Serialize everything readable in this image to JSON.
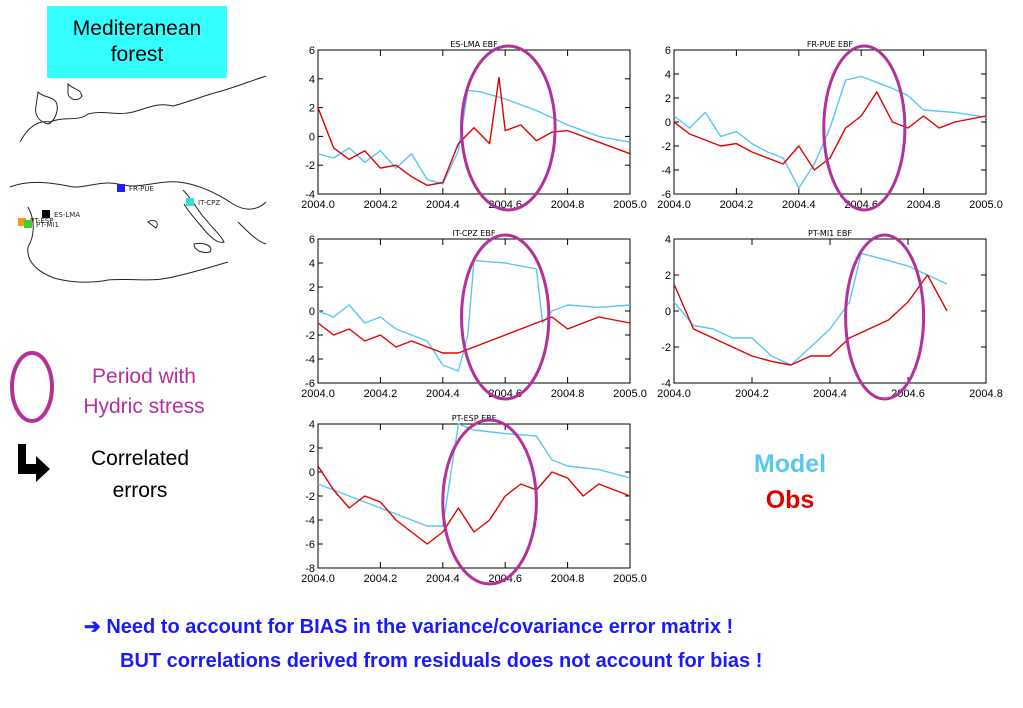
{
  "header": {
    "region_label": "Mediteranean\nforest"
  },
  "map": {
    "sites": [
      {
        "label": "FR-PUE",
        "color": "#1c1cff"
      },
      {
        "label": "IT-CPZ",
        "color": "#33dddd"
      },
      {
        "label": "ES-LMA",
        "color": "#000000"
      },
      {
        "label": "PT-ESP",
        "color": "#f39c12"
      },
      {
        "label": "PT-MI1",
        "color": "#44cc33"
      }
    ]
  },
  "legend": {
    "period_label": "Period with\nHydric stress",
    "correlated_label": "Correlated\nerrors",
    "model_label": "Model",
    "obs_label": "Obs",
    "circle_color": "#b4309a",
    "model_color": "#55c8f2",
    "obs_color": "#e00000"
  },
  "notes": {
    "line1": "➔ Need to account for BIAS in the variance/covariance error matrix !",
    "line2": "BUT correlations derived from residuals does not account for bias !"
  },
  "chart_data": [
    {
      "type": "line",
      "title": "ES-LMA EBF",
      "xlim": [
        2004.0,
        2005.0
      ],
      "ylim": [
        -4,
        6
      ],
      "yticks": [
        -4,
        -2,
        0,
        2,
        4,
        6
      ],
      "xticks": [
        "2004.0",
        "2004.2",
        "2004.4",
        "2004.6",
        "2004.8",
        "2005.0"
      ],
      "stress_period": [
        2004.46,
        2004.76
      ],
      "series": [
        {
          "role": "model",
          "color": "#55c8f2",
          "x": [
            2004.0,
            2004.05,
            2004.1,
            2004.15,
            2004.2,
            2004.25,
            2004.3,
            2004.35,
            2004.4,
            2004.45,
            2004.48,
            2004.52,
            2004.6,
            2004.7,
            2004.8,
            2004.9,
            2005.0
          ],
          "y": [
            -1.2,
            -1.5,
            -0.8,
            -1.8,
            -1.0,
            -2.2,
            -1.2,
            -3.0,
            -3.3,
            -1.0,
            3.2,
            3.1,
            2.6,
            1.8,
            0.8,
            0.0,
            -0.4
          ]
        },
        {
          "role": "obs",
          "color": "#e00000",
          "x": [
            2004.0,
            2004.05,
            2004.1,
            2004.15,
            2004.2,
            2004.25,
            2004.3,
            2004.35,
            2004.4,
            2004.45,
            2004.5,
            2004.55,
            2004.58,
            2004.6,
            2004.65,
            2004.7,
            2004.75,
            2004.8,
            2004.9,
            2005.0
          ],
          "y": [
            2.0,
            -0.8,
            -1.6,
            -1.0,
            -2.2,
            -2.0,
            -2.8,
            -3.4,
            -3.2,
            -0.5,
            0.6,
            -0.5,
            4.1,
            0.4,
            0.8,
            -0.3,
            0.3,
            0.4,
            -0.4,
            -1.2
          ]
        }
      ]
    },
    {
      "type": "line",
      "title": "FR-PUE EBF",
      "xlim": [
        2004.0,
        2005.0
      ],
      "ylim": [
        -6,
        6
      ],
      "yticks": [
        -6,
        -4,
        -2,
        0,
        2,
        4,
        6
      ],
      "xticks": [
        "2004.0",
        "2004.2",
        "2004.4",
        "2004.6",
        "2004.8",
        "2005.0"
      ],
      "stress_period": [
        2004.48,
        2004.74
      ],
      "series": [
        {
          "role": "model",
          "color": "#55c8f2",
          "x": [
            2004.0,
            2004.05,
            2004.1,
            2004.15,
            2004.2,
            2004.25,
            2004.3,
            2004.35,
            2004.4,
            2004.45,
            2004.5,
            2004.55,
            2004.6,
            2004.7,
            2004.75,
            2004.8,
            2004.9,
            2005.0
          ],
          "y": [
            0.5,
            -0.5,
            0.8,
            -1.2,
            -0.8,
            -1.8,
            -2.5,
            -3.0,
            -5.5,
            -3.5,
            -0.5,
            3.5,
            3.8,
            2.8,
            2.2,
            1.0,
            0.8,
            0.4
          ]
        },
        {
          "role": "obs",
          "color": "#e00000",
          "x": [
            2004.0,
            2004.05,
            2004.1,
            2004.15,
            2004.2,
            2004.25,
            2004.3,
            2004.35,
            2004.4,
            2004.45,
            2004.5,
            2004.55,
            2004.6,
            2004.65,
            2004.7,
            2004.75,
            2004.8,
            2004.85,
            2004.9,
            2005.0
          ],
          "y": [
            0.0,
            -1.0,
            -1.5,
            -2.0,
            -1.8,
            -2.5,
            -3.0,
            -3.5,
            -2.0,
            -4.0,
            -3.0,
            -0.5,
            0.5,
            2.5,
            0.0,
            -0.5,
            0.5,
            -0.5,
            0.0,
            0.5
          ]
        }
      ]
    },
    {
      "type": "line",
      "title": "IT-CPZ EBF",
      "xlim": [
        2004.0,
        2005.0
      ],
      "ylim": [
        -6,
        6
      ],
      "yticks": [
        -6,
        -4,
        -2,
        0,
        2,
        4,
        6
      ],
      "xticks": [
        "2004.0",
        "2004.2",
        "2004.4",
        "2004.6",
        "2004.8",
        "2005.0"
      ],
      "stress_period": [
        2004.46,
        2004.74
      ],
      "series": [
        {
          "role": "model",
          "color": "#55c8f2",
          "x": [
            2004.0,
            2004.05,
            2004.1,
            2004.15,
            2004.2,
            2004.25,
            2004.3,
            2004.35,
            2004.4,
            2004.45,
            2004.48,
            2004.5,
            2004.6,
            2004.7,
            2004.72,
            2004.75,
            2004.8,
            2004.9,
            2005.0
          ],
          "y": [
            0.0,
            -0.5,
            0.5,
            -1.0,
            -0.5,
            -1.5,
            -2.0,
            -2.5,
            -4.5,
            -5.0,
            -2.0,
            4.2,
            4.0,
            3.5,
            -1.0,
            0.0,
            0.5,
            0.3,
            0.5
          ]
        },
        {
          "role": "obs",
          "color": "#e00000",
          "x": [
            2004.0,
            2004.05,
            2004.1,
            2004.15,
            2004.2,
            2004.25,
            2004.3,
            2004.35,
            2004.4,
            2004.45,
            2004.5,
            2004.55,
            2004.6,
            2004.65,
            2004.7,
            2004.75,
            2004.8,
            2004.85,
            2004.9,
            2005.0
          ],
          "y": [
            -1.0,
            -2.0,
            -1.5,
            -2.5,
            -2.0,
            -3.0,
            -2.5,
            -3.0,
            -3.5,
            -3.5,
            -3.0,
            -2.5,
            -2.0,
            -1.5,
            -1.0,
            -0.5,
            -1.5,
            -1.0,
            -0.5,
            -1.0
          ]
        }
      ]
    },
    {
      "type": "line",
      "title": "PT-MI1 EBF",
      "xlim": [
        2004.0,
        2004.8
      ],
      "ylim": [
        -4,
        4
      ],
      "yticks": [
        -4,
        -2,
        0,
        2,
        4
      ],
      "xticks": [
        "2004.0",
        "2004.2",
        "2004.4",
        "2004.6",
        "2004.8"
      ],
      "stress_period": [
        2004.44,
        2004.64
      ],
      "series": [
        {
          "role": "model",
          "color": "#55c8f2",
          "x": [
            2004.0,
            2004.05,
            2004.1,
            2004.15,
            2004.2,
            2004.25,
            2004.3,
            2004.35,
            2004.4,
            2004.45,
            2004.48,
            2004.55,
            2004.6,
            2004.65,
            2004.7
          ],
          "y": [
            0.5,
            -0.8,
            -1.0,
            -1.5,
            -1.5,
            -2.5,
            -3.0,
            -2.0,
            -1.0,
            0.5,
            3.2,
            2.8,
            2.5,
            2.0,
            1.5
          ]
        },
        {
          "role": "obs",
          "color": "#e00000",
          "x": [
            2004.0,
            2004.05,
            2004.1,
            2004.15,
            2004.2,
            2004.25,
            2004.3,
            2004.35,
            2004.4,
            2004.45,
            2004.5,
            2004.55,
            2004.6,
            2004.65,
            2004.7
          ],
          "y": [
            1.5,
            -1.0,
            -1.5,
            -2.0,
            -2.5,
            -2.8,
            -3.0,
            -2.5,
            -2.5,
            -1.5,
            -1.0,
            -0.5,
            0.5,
            2.0,
            0.0
          ]
        }
      ]
    },
    {
      "type": "line",
      "title": "PT-ESP EBF",
      "xlim": [
        2004.0,
        2005.0
      ],
      "ylim": [
        -8,
        4
      ],
      "yticks": [
        -8,
        -6,
        -4,
        -2,
        0,
        2,
        4
      ],
      "xticks": [
        "2004.0",
        "2004.2",
        "2004.4",
        "2004.6",
        "2004.8",
        "2005.0"
      ],
      "stress_period": [
        2004.4,
        2004.7
      ],
      "series": [
        {
          "role": "model",
          "color": "#55c8f2",
          "x": [
            2004.0,
            2004.05,
            2004.1,
            2004.15,
            2004.2,
            2004.25,
            2004.3,
            2004.35,
            2004.4,
            2004.45,
            2004.5,
            2004.6,
            2004.7,
            2004.75,
            2004.8,
            2004.9,
            2005.0
          ],
          "y": [
            -1.0,
            -1.5,
            -2.0,
            -2.5,
            -3.0,
            -3.5,
            -4.0,
            -4.5,
            -4.5,
            4.0,
            3.5,
            3.2,
            3.0,
            1.0,
            0.5,
            0.2,
            -0.5
          ]
        },
        {
          "role": "obs",
          "color": "#e00000",
          "x": [
            2004.0,
            2004.05,
            2004.1,
            2004.15,
            2004.2,
            2004.25,
            2004.3,
            2004.35,
            2004.4,
            2004.45,
            2004.5,
            2004.55,
            2004.6,
            2004.65,
            2004.7,
            2004.75,
            2004.8,
            2004.85,
            2004.9,
            2005.0
          ],
          "y": [
            0.5,
            -1.5,
            -3.0,
            -2.0,
            -2.5,
            -4.0,
            -5.0,
            -6.0,
            -5.0,
            -3.0,
            -5.0,
            -4.0,
            -2.0,
            -1.0,
            -1.5,
            0.0,
            -0.5,
            -2.0,
            -1.0,
            -2.0
          ]
        }
      ]
    }
  ]
}
